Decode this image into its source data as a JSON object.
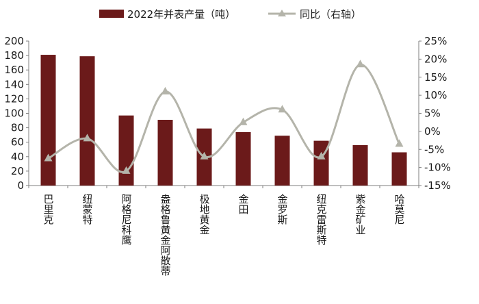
{
  "chart_data": {
    "type": "bar+line",
    "categories": [
      "巴里克",
      "纽蒙特",
      "阿格尼科鹰",
      "盎格鲁黄金阿散蒂",
      "极地黄金",
      "金田",
      "金罗斯",
      "纽克雷斯特",
      "紫金矿业",
      "哈莫尼"
    ],
    "series": [
      {
        "name": "2022年并表产量（吨）",
        "type": "bar",
        "axis": "left",
        "color": "#6b1a1a",
        "values": [
          181,
          179,
          97,
          91,
          79,
          74,
          69,
          62,
          56,
          46
        ]
      },
      {
        "name": "同比（右轴）",
        "type": "line",
        "axis": "right",
        "color": "#b4b4aa",
        "marker": "triangle",
        "values": [
          -7.5,
          -2.0,
          -11.0,
          11.0,
          -7.0,
          2.5,
          6.0,
          -7.0,
          18.5,
          -3.5
        ]
      }
    ],
    "left_axis": {
      "ylim": [
        0,
        200
      ],
      "ticks": [
        "0",
        "20",
        "40",
        "60",
        "80",
        "100",
        "120",
        "140",
        "160",
        "180",
        "200"
      ]
    },
    "right_axis": {
      "ylim": [
        -15,
        25
      ],
      "ticks": [
        "-15%",
        "-10%",
        "-5%",
        "0%",
        "5%",
        "10%",
        "15%",
        "20%",
        "25%"
      ]
    },
    "legend_position": "top",
    "grid": false
  }
}
